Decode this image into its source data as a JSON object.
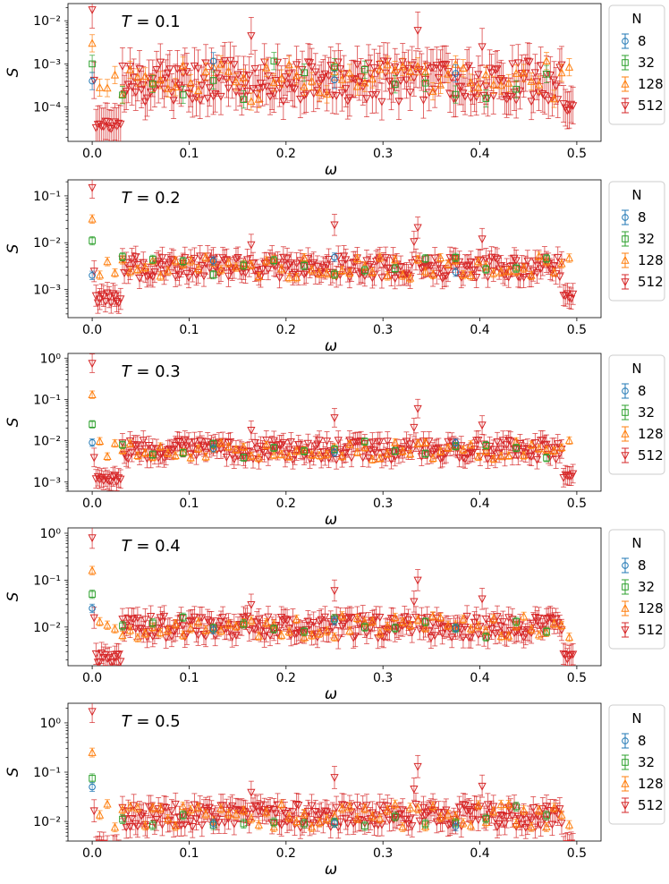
{
  "chart_data": [
    {
      "type": "scatter",
      "title": "",
      "annotation_prefix": "T = ",
      "annotation_value": "0.1",
      "xlabel": "ω",
      "ylabel": "S",
      "xlim": [
        -0.025,
        0.525
      ],
      "ylim": [
        1.6e-05,
        0.025
      ],
      "yscale": "log",
      "x_ticks": [
        0.0,
        0.1,
        0.2,
        0.3,
        0.4,
        0.5
      ],
      "x_tick_labels": [
        "0.0",
        "0.1",
        "0.2",
        "0.3",
        "0.4",
        "0.5"
      ],
      "y_ticks": [
        0.0001,
        0.001,
        0.01
      ],
      "y_tick_labels": [
        "10⁻⁴",
        "10⁻³",
        "10⁻²"
      ],
      "legend_title": "N",
      "legend_placement": "outside-right",
      "series": [
        {
          "name": "8",
          "color": "#1f77b4",
          "marker": "circle"
        },
        {
          "name": "32",
          "color": "#2ca02c",
          "marker": "square"
        },
        {
          "name": "128",
          "color": "#ff7f0e",
          "marker": "triangle-up"
        },
        {
          "name": "512",
          "color": "#d62728",
          "marker": "triangle-down"
        }
      ],
      "series_notes": "512 base level ~4e-4 with large error bars; N=32 ~6e-4; N=128 ~3e-4",
      "peak_values_512": {
        "0.0": 0.018,
        "0.334": 0.006,
        "0.165": 0.0045,
        "0.4": 0.0025
      },
      "low_values_512": {
        "0.003-0.015": 4e-05
      }
    },
    {
      "type": "scatter",
      "annotation_prefix": "T = ",
      "annotation_value": "0.2",
      "xlabel": "ω",
      "ylabel": "S",
      "xlim": [
        -0.025,
        0.525
      ],
      "ylim": [
        0.00025,
        0.22
      ],
      "yscale": "log",
      "x_ticks": [
        0.0,
        0.1,
        0.2,
        0.3,
        0.4,
        0.5
      ],
      "x_tick_labels": [
        "0.0",
        "0.1",
        "0.2",
        "0.3",
        "0.4",
        "0.5"
      ],
      "y_ticks": [
        0.001,
        0.01,
        0.1
      ],
      "y_tick_labels": [
        "10⁻³",
        "10⁻²",
        "10⁻¹"
      ],
      "legend_title": "N",
      "series": [
        {
          "name": "8",
          "color": "#1f77b4",
          "marker": "circle"
        },
        {
          "name": "32",
          "color": "#2ca02c",
          "marker": "square"
        },
        {
          "name": "128",
          "color": "#ff7f0e",
          "marker": "triangle-up"
        },
        {
          "name": "512",
          "color": "#d62728",
          "marker": "triangle-down"
        }
      ],
      "peak_values_512": {
        "0.0": 0.15,
        "0.25": 0.025,
        "0.334": 0.022
      },
      "first_point_values": {
        "8": 0.002,
        "32": 0.011,
        "128": 0.032,
        "512": 0.15
      }
    },
    {
      "type": "scatter",
      "annotation_prefix": "T = ",
      "annotation_value": "0.3",
      "xlabel": "ω",
      "ylabel": "S",
      "xlim": [
        -0.025,
        0.525
      ],
      "ylim": [
        0.0006,
        1.3
      ],
      "yscale": "log",
      "x_ticks": [
        0.0,
        0.1,
        0.2,
        0.3,
        0.4,
        0.5
      ],
      "x_tick_labels": [
        "0.0",
        "0.1",
        "0.2",
        "0.3",
        "0.4",
        "0.5"
      ],
      "y_ticks": [
        0.001,
        0.01,
        0.1,
        1
      ],
      "y_tick_labels": [
        "10⁻³",
        "10⁻²",
        "10⁻¹",
        "10⁰"
      ],
      "legend_title": "N",
      "series": [
        {
          "name": "8",
          "color": "#1f77b4",
          "marker": "circle"
        },
        {
          "name": "32",
          "color": "#2ca02c",
          "marker": "square"
        },
        {
          "name": "128",
          "color": "#ff7f0e",
          "marker": "triangle-up"
        },
        {
          "name": "512",
          "color": "#d62728",
          "marker": "triangle-down"
        }
      ],
      "first_point_values": {
        "8": 0.009,
        "32": 0.025,
        "128": 0.13,
        "512": 0.75
      }
    },
    {
      "type": "scatter",
      "annotation_prefix": "T = ",
      "annotation_value": "0.4",
      "xlabel": "ω",
      "ylabel": "S",
      "xlim": [
        -0.025,
        0.525
      ],
      "ylim": [
        0.0015,
        1.3
      ],
      "yscale": "log",
      "x_ticks": [
        0.0,
        0.1,
        0.2,
        0.3,
        0.4,
        0.5
      ],
      "x_tick_labels": [
        "0.0",
        "0.1",
        "0.2",
        "0.3",
        "0.4",
        "0.5"
      ],
      "y_ticks": [
        0.01,
        0.1,
        1
      ],
      "y_tick_labels": [
        "10⁻²",
        "10⁻¹",
        "10⁰"
      ],
      "legend_title": "N",
      "series": [
        {
          "name": "8",
          "color": "#1f77b4",
          "marker": "circle"
        },
        {
          "name": "32",
          "color": "#2ca02c",
          "marker": "square"
        },
        {
          "name": "128",
          "color": "#ff7f0e",
          "marker": "triangle-up"
        },
        {
          "name": "512",
          "color": "#d62728",
          "marker": "triangle-down"
        }
      ],
      "first_point_values": {
        "8": 0.025,
        "32": 0.05,
        "128": 0.16,
        "512": 0.8
      }
    },
    {
      "type": "scatter",
      "annotation_prefix": "T = ",
      "annotation_value": "0.5",
      "xlabel": "ω",
      "ylabel": "S",
      "xlim": [
        -0.025,
        0.525
      ],
      "ylim": [
        0.004,
        2.5
      ],
      "yscale": "log",
      "x_ticks": [
        0.0,
        0.1,
        0.2,
        0.3,
        0.4,
        0.5
      ],
      "x_tick_labels": [
        "0.0",
        "0.1",
        "0.2",
        "0.3",
        "0.4",
        "0.5"
      ],
      "y_ticks": [
        0.01,
        0.1,
        1
      ],
      "y_tick_labels": [
        "10⁻²",
        "10⁻¹",
        "10⁰"
      ],
      "legend_title": "N",
      "series": [
        {
          "name": "8",
          "color": "#1f77b4",
          "marker": "circle"
        },
        {
          "name": "32",
          "color": "#2ca02c",
          "marker": "square"
        },
        {
          "name": "128",
          "color": "#ff7f0e",
          "marker": "triangle-up"
        },
        {
          "name": "512",
          "color": "#d62728",
          "marker": "triangle-down"
        }
      ],
      "first_point_values": {
        "8": 0.05,
        "32": 0.075,
        "128": 0.25,
        "512": 1.7
      }
    }
  ]
}
